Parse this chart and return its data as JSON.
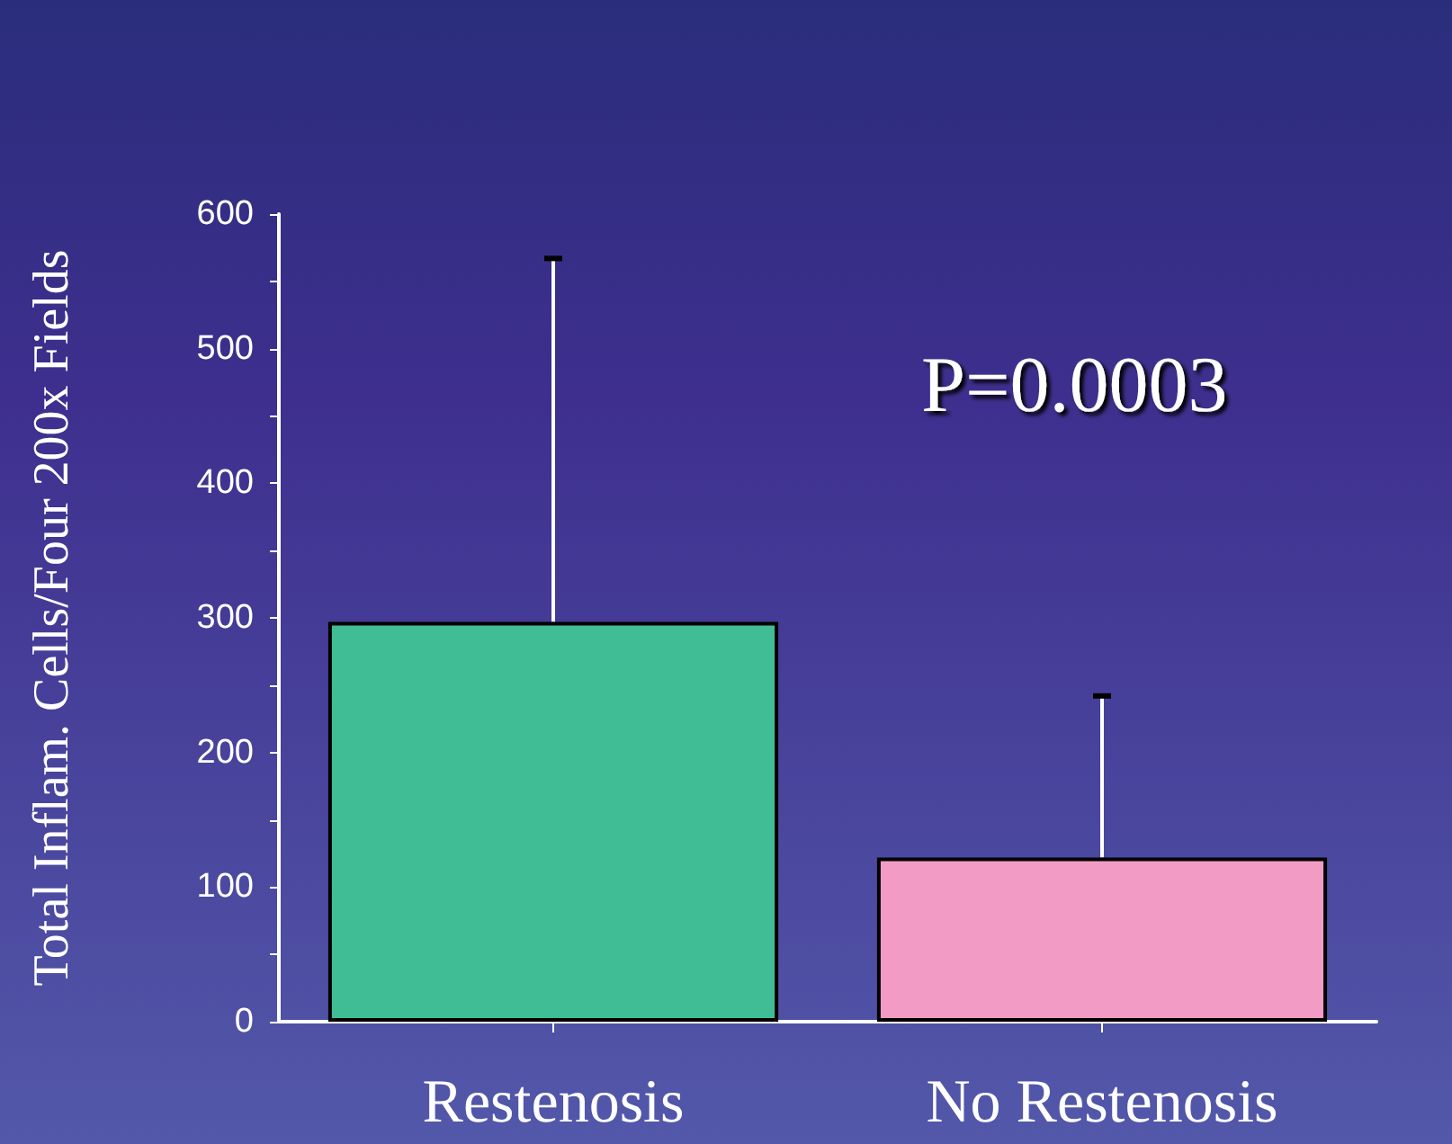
{
  "chart_data": {
    "type": "bar",
    "ylabel": "Total Inflam. Cells/Four 200x Fields",
    "categories": [
      "Restenosis",
      "No Restenosis"
    ],
    "values": [
      297,
      122
    ],
    "colors": [
      "#41bd96",
      "#f29bc4"
    ],
    "errors": [
      [
        297,
        567
      ],
      [
        122,
        242
      ]
    ],
    "ylim": [
      0,
      600
    ],
    "yticks": [
      0,
      {
        "value": 50,
        "label": null
      },
      100,
      {
        "value": 150,
        "label": null
      },
      200,
      {
        "value": 250,
        "label": null
      },
      300,
      {
        "value": 350,
        "label": null
      },
      400,
      {
        "value": 450,
        "label": null
      },
      500,
      {
        "value": 550,
        "label": null
      },
      600
    ],
    "annotations": [
      "P=0.0003"
    ],
    "grid": false
  }
}
